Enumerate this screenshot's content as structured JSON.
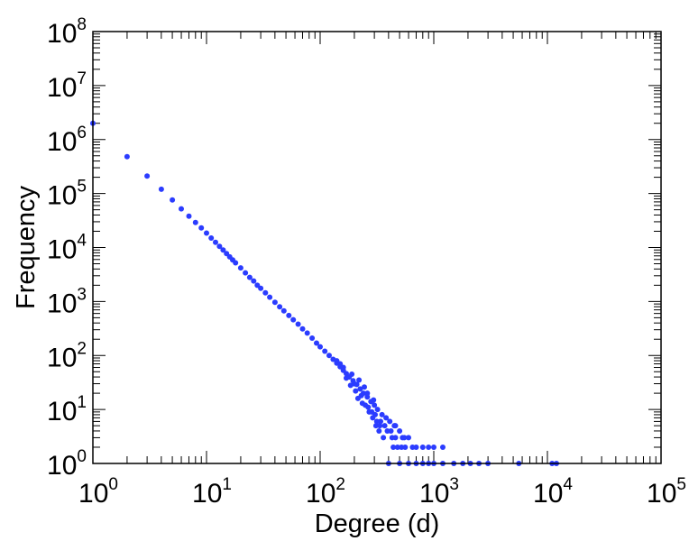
{
  "chart_data": {
    "type": "scatter",
    "title": "",
    "xlabel": "Degree (d)",
    "ylabel": "Frequency",
    "x_scale": "log",
    "y_scale": "log",
    "xlim": [
      1,
      100000
    ],
    "ylim": [
      1,
      100000000
    ],
    "x_tick_labels": [
      {
        "base": "10",
        "exp": "0"
      },
      {
        "base": "10",
        "exp": "1"
      },
      {
        "base": "10",
        "exp": "2"
      },
      {
        "base": "10",
        "exp": "3"
      },
      {
        "base": "10",
        "exp": "4"
      },
      {
        "base": "10",
        "exp": "5"
      }
    ],
    "y_tick_labels": [
      {
        "base": "10",
        "exp": "0"
      },
      {
        "base": "10",
        "exp": "1"
      },
      {
        "base": "10",
        "exp": "2"
      },
      {
        "base": "10",
        "exp": "3"
      },
      {
        "base": "10",
        "exp": "4"
      },
      {
        "base": "10",
        "exp": "5"
      },
      {
        "base": "10",
        "exp": "6"
      },
      {
        "base": "10",
        "exp": "7"
      },
      {
        "base": "10",
        "exp": "8"
      }
    ],
    "grid": false,
    "legend": "none",
    "marker_color": "#2b3cff",
    "series": [
      {
        "points": [
          [
            1,
            2000000
          ],
          [
            2,
            480000
          ],
          [
            3,
            210000
          ],
          [
            4,
            120000
          ],
          [
            5,
            76000
          ],
          [
            6,
            52000
          ],
          [
            7,
            38000
          ],
          [
            8,
            29000
          ],
          [
            9,
            23000
          ],
          [
            10,
            18500
          ],
          [
            11,
            15000
          ],
          [
            12,
            12500
          ],
          [
            13,
            10500
          ],
          [
            14,
            9000
          ],
          [
            15,
            7700
          ],
          [
            16,
            6700
          ],
          [
            17,
            5900
          ],
          [
            18,
            5200
          ],
          [
            20,
            4200
          ],
          [
            22,
            3400
          ],
          [
            24,
            2800
          ],
          [
            26,
            2400
          ],
          [
            28,
            2000
          ],
          [
            30,
            1750
          ],
          [
            33,
            1450
          ],
          [
            36,
            1200
          ],
          [
            40,
            970
          ],
          [
            44,
            800
          ],
          [
            48,
            670
          ],
          [
            53,
            550
          ],
          [
            58,
            460
          ],
          [
            64,
            380
          ],
          [
            70,
            310
          ],
          [
            77,
            260
          ],
          [
            85,
            210
          ],
          [
            93,
            170
          ],
          [
            100,
            145
          ],
          [
            110,
            120
          ],
          [
            120,
            100
          ],
          [
            130,
            85
          ],
          [
            140,
            72
          ],
          [
            150,
            62
          ],
          [
            160,
            53
          ],
          [
            170,
            46
          ],
          [
            180,
            40
          ],
          [
            195,
            34
          ],
          [
            210,
            29
          ],
          [
            225,
            24
          ],
          [
            240,
            20
          ],
          [
            260,
            17
          ],
          [
            280,
            14
          ],
          [
            300,
            12
          ],
          [
            320,
            10
          ],
          [
            350,
            8
          ],
          [
            380,
            7
          ],
          [
            410,
            6
          ],
          [
            450,
            5
          ],
          [
            500,
            4
          ],
          [
            550,
            3
          ],
          [
            600,
            3
          ],
          [
            650,
            2
          ],
          [
            700,
            2
          ],
          [
            800,
            2
          ],
          [
            900,
            2
          ],
          [
            1000,
            2
          ],
          [
            1200,
            2
          ],
          [
            400,
            1
          ],
          [
            500,
            1
          ],
          [
            600,
            1
          ],
          [
            700,
            1
          ],
          [
            800,
            1
          ],
          [
            900,
            1
          ],
          [
            1000,
            1
          ],
          [
            1200,
            1
          ],
          [
            1500,
            1
          ],
          [
            1800,
            1
          ],
          [
            2100,
            1
          ],
          [
            2500,
            1
          ],
          [
            3000,
            1
          ],
          [
            5600,
            1
          ],
          [
            11000,
            1
          ],
          [
            12000,
            1
          ],
          [
            200,
            30
          ],
          [
            230,
            18
          ],
          [
            250,
            12
          ],
          [
            270,
            9
          ],
          [
            290,
            7
          ],
          [
            310,
            5
          ],
          [
            330,
            4
          ],
          [
            340,
            6
          ],
          [
            360,
            3
          ],
          [
            420,
            4
          ],
          [
            460,
            3
          ],
          [
            520,
            2
          ],
          [
            480,
            2
          ],
          [
            170,
            38
          ],
          [
            185,
            28
          ],
          [
            205,
            22
          ],
          [
            215,
            16
          ],
          [
            235,
            13
          ],
          [
            245,
            26
          ],
          [
            265,
            11
          ],
          [
            285,
            9
          ],
          [
            295,
            15
          ],
          [
            305,
            8
          ],
          [
            315,
            6
          ],
          [
            335,
            5
          ],
          [
            140,
            80
          ],
          [
            150,
            70
          ],
          [
            160,
            60
          ],
          [
            190,
            45
          ],
          [
            220,
            35
          ],
          [
            260,
            20
          ],
          [
            370,
            5
          ],
          [
            390,
            4
          ],
          [
            430,
            3
          ],
          [
            440,
            2
          ],
          [
            460,
            5
          ],
          [
            530,
            3
          ],
          [
            560,
            2
          ]
        ]
      }
    ]
  }
}
